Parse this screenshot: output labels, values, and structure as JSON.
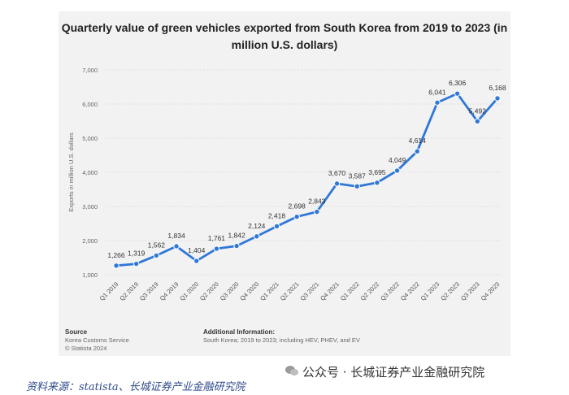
{
  "chart_data": {
    "type": "line",
    "title_line1": "Quarterly value of green vehicles exported from South Korea from 2019 to 2023 (in",
    "title_line2": "million U.S. dollars)",
    "ylabel": "Exports in million U.S. dollars",
    "xlabel": "",
    "ylim": [
      1000,
      7000
    ],
    "yticks": [
      1000,
      2000,
      3000,
      4000,
      5000,
      6000,
      7000
    ],
    "ytick_labels": [
      "1,000",
      "2,000",
      "3,000",
      "4,000",
      "5,000",
      "6,000",
      "7,000"
    ],
    "grid": true,
    "series": [
      {
        "name": "Exports",
        "color": "#2f77d8",
        "categories": [
          "Q1 2019",
          "Q2 2019",
          "Q3 2019",
          "Q4 2019",
          "Q1 2020",
          "Q2 2020",
          "Q3 2020",
          "Q4 2020",
          "Q1 2021",
          "Q2 2021",
          "Q3 2021",
          "Q4 2021",
          "Q1 2022",
          "Q2 2022",
          "Q3 2022",
          "Q4 2022",
          "Q1 2023",
          "Q2 2023",
          "Q3 2023",
          "Q4 2023"
        ],
        "values": [
          1266,
          1319,
          1562,
          1834,
          1404,
          1761,
          1842,
          2124,
          2418,
          2698,
          2843,
          3670,
          3587,
          3695,
          4049,
          4614,
          6041,
          6306,
          5492,
          6168
        ],
        "labels": [
          "1,266",
          "1,319",
          "1,562",
          "1,834",
          "1,404",
          "1,761",
          "1,842",
          "2,124",
          "2,418",
          "2,698",
          "2,843",
          "3,670",
          "3,587",
          "3,695",
          "4,049",
          "4,614",
          "6,041",
          "6,306",
          "5,492",
          "6,168"
        ]
      }
    ]
  },
  "footer": {
    "source_heading": "Source",
    "source_line1": "Korea Customs Service",
    "source_line2": "© Statista 2024",
    "info_heading": "Additional Information:",
    "info_line1": "South Korea; 2019 to 2023; including HEV, PHEV, and EV"
  },
  "source_note": "资料来源：statista、长城证券产业金融研究院",
  "watermark": "公众号 · 长城证券产业金融研究院"
}
